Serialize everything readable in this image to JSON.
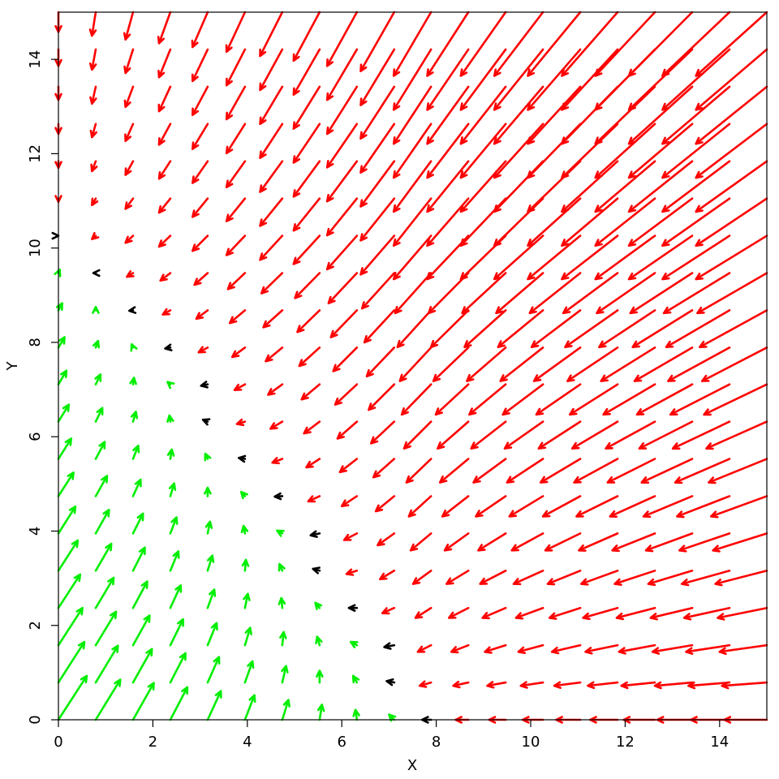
{
  "chart_data": {
    "type": "quiver",
    "xlabel": "X",
    "ylabel": "Y",
    "xlim": [
      0,
      15
    ],
    "ylim": [
      0,
      15
    ],
    "xticks": [
      0,
      2,
      4,
      6,
      8,
      10,
      12,
      14
    ],
    "yticks": [
      0,
      2,
      4,
      6,
      8,
      10,
      12,
      14
    ],
    "x": [
      0,
      0.79,
      1.58,
      2.37,
      3.16,
      3.95,
      4.74,
      5.53,
      6.32,
      7.11,
      7.89,
      8.68,
      9.47,
      10.26,
      11.05,
      11.84,
      12.63,
      13.42,
      14.21,
      15
    ],
    "y": [
      0,
      0.79,
      1.58,
      2.37,
      3.16,
      3.95,
      4.74,
      5.53,
      6.32,
      7.11,
      7.89,
      8.68,
      9.47,
      10.26,
      11.05,
      11.84,
      12.63,
      13.42,
      14.21,
      15
    ],
    "u": [
      [
        0.6,
        0.52,
        0.44,
        0.36,
        0.28,
        0.2,
        0.13,
        0.05,
        -0.03,
        -0.11,
        -0.19,
        -0.27,
        -0.35,
        -0.43,
        -0.51,
        -0.58,
        -0.66,
        -0.74,
        -0.82,
        -0.9
      ],
      [
        0.55,
        0.47,
        0.4,
        0.32,
        0.24,
        0.16,
        0.08,
        0,
        -0.08,
        -0.16,
        -0.24,
        -0.32,
        -0.39,
        -0.47,
        -0.55,
        -0.63,
        -0.71,
        -0.79,
        -0.87,
        -0.95
      ],
      [
        0.51,
        0.43,
        0.35,
        0.27,
        0.19,
        0.11,
        0.03,
        -0.05,
        -0.13,
        -0.21,
        -0.28,
        -0.36,
        -0.44,
        -0.52,
        -0.6,
        -0.68,
        -0.76,
        -0.84,
        -0.92,
        -1
      ],
      [
        0.46,
        0.38,
        0.3,
        0.22,
        0.14,
        0.06,
        -0.02,
        -0.09,
        -0.17,
        -0.25,
        -0.33,
        -0.41,
        -0.49,
        -0.57,
        -0.65,
        -0.73,
        -0.81,
        -0.88,
        -0.96,
        -1.04
      ],
      [
        0.41,
        0.33,
        0.25,
        0.17,
        0.1,
        0.02,
        -0.06,
        -0.14,
        -0.22,
        -0.3,
        -0.38,
        -0.46,
        -0.54,
        -0.62,
        -0.69,
        -0.77,
        -0.85,
        -0.93,
        -1.01,
        -1.09
      ],
      [
        0.36,
        0.28,
        0.21,
        0.13,
        0.05,
        -0.03,
        -0.11,
        -0.19,
        -0.27,
        -0.35,
        -0.43,
        -0.5,
        -0.58,
        -0.66,
        -0.74,
        -0.82,
        -0.9,
        -0.98,
        -1.06,
        -1.14
      ],
      [
        0.32,
        0.24,
        0.16,
        0.08,
        0,
        -0.08,
        -0.16,
        -0.24,
        -0.32,
        -0.39,
        -0.47,
        -0.55,
        -0.63,
        -0.71,
        -0.79,
        -0.87,
        -0.95,
        -1.03,
        -1.11,
        -1.18
      ],
      [
        0.27,
        0.19,
        0.11,
        0.03,
        -0.05,
        -0.13,
        -0.21,
        -0.28,
        -0.36,
        -0.44,
        -0.52,
        -0.6,
        -0.68,
        -0.76,
        -0.84,
        -0.92,
        -1,
        -1.07,
        -1.15,
        -1.23
      ],
      [
        0.22,
        0.14,
        0.06,
        -0.02,
        -0.1,
        -0.17,
        -0.25,
        -0.33,
        -0.41,
        -0.49,
        -0.57,
        -0.65,
        -0.73,
        -0.81,
        -0.88,
        -0.96,
        -1.04,
        -1.12,
        -1.2,
        -1.28
      ],
      [
        0.17,
        0.1,
        0.02,
        -0.06,
        -0.14,
        -0.22,
        -0.3,
        -0.38,
        -0.46,
        -0.54,
        -0.62,
        -0.69,
        -0.77,
        -0.85,
        -0.93,
        -1.01,
        -1.09,
        -1.17,
        -1.25,
        -1.33
      ],
      [
        0.13,
        0.05,
        -0.03,
        -0.11,
        -0.19,
        -0.27,
        -0.35,
        -0.43,
        -0.5,
        -0.58,
        -0.66,
        -0.74,
        -0.82,
        -0.9,
        -0.98,
        -1.06,
        -1.14,
        -1.22,
        -1.3,
        -1.37
      ],
      [
        0.08,
        0,
        -0.08,
        -0.16,
        -0.24,
        -0.32,
        -0.4,
        -0.47,
        -0.55,
        -0.63,
        -0.71,
        -0.79,
        -0.87,
        -0.95,
        -1.03,
        -1.11,
        -1.18,
        -1.26,
        -1.34,
        -1.42
      ],
      [
        0.03,
        -0.05,
        -0.13,
        -0.21,
        -0.28,
        -0.36,
        -0.44,
        -0.52,
        -0.6,
        -0.68,
        -0.76,
        -0.84,
        -0.92,
        -0.99,
        -1.07,
        -1.15,
        -1.23,
        -1.31,
        -1.39,
        -1.47
      ],
      [
        0,
        -0.08,
        -0.16,
        -0.24,
        -0.32,
        -0.39,
        -0.47,
        -0.55,
        -0.63,
        -0.71,
        -0.79,
        -0.87,
        -0.95,
        -1.03,
        -1.11,
        -1.18,
        -1.26,
        -1.34,
        -1.42,
        -1.5
      ],
      [
        0,
        -0.08,
        -0.16,
        -0.24,
        -0.32,
        -0.39,
        -0.47,
        -0.55,
        -0.63,
        -0.71,
        -0.79,
        -0.87,
        -0.95,
        -1.03,
        -1.11,
        -1.18,
        -1.26,
        -1.34,
        -1.42,
        -1.5
      ],
      [
        0,
        -0.08,
        -0.16,
        -0.24,
        -0.32,
        -0.39,
        -0.47,
        -0.55,
        -0.63,
        -0.71,
        -0.79,
        -0.87,
        -0.95,
        -1.03,
        -1.11,
        -1.18,
        -1.26,
        -1.34,
        -1.42,
        -1.5
      ],
      [
        0,
        -0.08,
        -0.16,
        -0.24,
        -0.32,
        -0.39,
        -0.47,
        -0.55,
        -0.63,
        -0.71,
        -0.79,
        -0.87,
        -0.95,
        -1.03,
        -1.11,
        -1.18,
        -1.26,
        -1.34,
        -1.42,
        -1.5
      ],
      [
        0,
        -0.08,
        -0.16,
        -0.24,
        -0.32,
        -0.39,
        -0.47,
        -0.55,
        -0.63,
        -0.71,
        -0.79,
        -0.87,
        -0.95,
        -1.03,
        -1.11,
        -1.18,
        -1.26,
        -1.34,
        -1.42,
        -1.5
      ],
      [
        0,
        -0.08,
        -0.16,
        -0.24,
        -0.32,
        -0.39,
        -0.47,
        -0.55,
        -0.63,
        -0.71,
        -0.79,
        -0.87,
        -0.95,
        -1.03,
        -1.11,
        -1.18,
        -1.26,
        -1.34,
        -1.42,
        -1.5
      ],
      [
        0,
        -0.08,
        -0.16,
        -0.24,
        -0.32,
        -0.39,
        -0.47,
        -0.55,
        -0.63,
        -0.71,
        -0.79,
        -0.87,
        -0.95,
        -1.03,
        -1.11,
        -1.18,
        -1.26,
        -1.34,
        -1.42,
        -1.5
      ]
    ],
    "v": [
      [
        0.93,
        0.85,
        0.78,
        0.69,
        0.61,
        0.52,
        0.42,
        0.32,
        0.21,
        0.11,
        0,
        0,
        0,
        0,
        0,
        0,
        0,
        0,
        0,
        0
      ],
      [
        0.86,
        0.78,
        0.71,
        0.62,
        0.54,
        0.45,
        0.35,
        0.25,
        0.14,
        0.03,
        -0.07,
        -0.07,
        -0.07,
        -0.07,
        -0.07,
        -0.07,
        -0.07,
        -0.07,
        -0.07,
        -0.07
      ],
      [
        0.79,
        0.71,
        0.63,
        0.55,
        0.47,
        0.37,
        0.28,
        0.18,
        0.07,
        -0.04,
        -0.14,
        -0.14,
        -0.14,
        -0.14,
        -0.14,
        -0.14,
        -0.14,
        -0.14,
        -0.14,
        -0.14
      ],
      [
        0.71,
        0.64,
        0.56,
        0.48,
        0.39,
        0.3,
        0.21,
        0.11,
        0,
        -0.11,
        -0.21,
        -0.21,
        -0.21,
        -0.21,
        -0.21,
        -0.21,
        -0.21,
        -0.21,
        -0.21,
        -0.21
      ],
      [
        0.64,
        0.57,
        0.49,
        0.41,
        0.32,
        0.23,
        0.14,
        0.04,
        -0.07,
        -0.18,
        -0.28,
        -0.28,
        -0.28,
        -0.28,
        -0.28,
        -0.28,
        -0.28,
        -0.28,
        -0.28,
        -0.28
      ],
      [
        0.57,
        0.5,
        0.42,
        0.34,
        0.25,
        0.16,
        0.06,
        -0.04,
        -0.14,
        -0.25,
        -0.36,
        -0.36,
        -0.36,
        -0.36,
        -0.36,
        -0.36,
        -0.36,
        -0.36,
        -0.36,
        -0.36
      ],
      [
        0.5,
        0.43,
        0.35,
        0.27,
        0.18,
        0.09,
        -0.01,
        -0.11,
        -0.21,
        -0.32,
        -0.43,
        -0.43,
        -0.43,
        -0.43,
        -0.43,
        -0.43,
        -0.43,
        -0.43,
        -0.43,
        -0.43
      ],
      [
        0.43,
        0.36,
        0.28,
        0.2,
        0.11,
        0.02,
        -0.08,
        -0.18,
        -0.28,
        -0.39,
        -0.5,
        -0.5,
        -0.5,
        -0.5,
        -0.5,
        -0.5,
        -0.5,
        -0.5,
        -0.5,
        -0.5
      ],
      [
        0.36,
        0.29,
        0.21,
        0.13,
        0.04,
        -0.05,
        -0.15,
        -0.25,
        -0.36,
        -0.46,
        -0.57,
        -0.57,
        -0.57,
        -0.57,
        -0.57,
        -0.57,
        -0.57,
        -0.57,
        -0.57,
        -0.57
      ],
      [
        0.29,
        0.21,
        0.14,
        0.05,
        -0.03,
        -0.12,
        -0.22,
        -0.32,
        -0.43,
        -0.54,
        -0.64,
        -0.64,
        -0.64,
        -0.64,
        -0.64,
        -0.64,
        -0.64,
        -0.64,
        -0.64,
        -0.64
      ],
      [
        0.22,
        0.14,
        0.07,
        -0.02,
        -0.1,
        -0.2,
        -0.29,
        -0.39,
        -0.5,
        -0.61,
        -0.71,
        -0.71,
        -0.71,
        -0.71,
        -0.71,
        -0.71,
        -0.71,
        -0.71,
        -0.71,
        -0.71
      ],
      [
        0.15,
        0.07,
        -0.01,
        -0.09,
        -0.18,
        -0.27,
        -0.36,
        -0.46,
        -0.57,
        -0.68,
        -0.78,
        -0.78,
        -0.78,
        -0.78,
        -0.78,
        -0.78,
        -0.78,
        -0.78,
        -0.78,
        -0.78
      ],
      [
        0.07,
        0,
        -0.08,
        -0.16,
        -0.25,
        -0.34,
        -0.43,
        -0.53,
        -0.64,
        -0.75,
        -0.85,
        -0.85,
        -0.85,
        -0.85,
        -0.85,
        -0.85,
        -0.85,
        -0.85,
        -0.85,
        -0.85
      ],
      [
        0,
        -0.07,
        -0.15,
        -0.23,
        -0.32,
        -0.41,
        -0.51,
        -0.6,
        -0.71,
        -0.82,
        -0.92,
        -0.92,
        -0.92,
        -0.92,
        -0.92,
        -0.92,
        -0.92,
        -0.92,
        -0.92,
        -0.92
      ],
      [
        -0.07,
        -0.14,
        -0.22,
        -0.3,
        -0.39,
        -0.48,
        -0.58,
        -0.68,
        -0.78,
        -0.89,
        -1,
        -1,
        -1,
        -1,
        -1,
        -1,
        -1,
        -1,
        -1,
        -1
      ],
      [
        -0.14,
        -0.21,
        -0.29,
        -0.37,
        -0.46,
        -0.55,
        -0.65,
        -0.75,
        -0.85,
        -0.96,
        -1.07,
        -1.07,
        -1.07,
        -1.07,
        -1.07,
        -1.07,
        -1.07,
        -1.07,
        -1.07,
        -1.07
      ],
      [
        -0.21,
        -0.28,
        -0.36,
        -0.44,
        -0.53,
        -0.62,
        -0.72,
        -0.82,
        -0.92,
        -1.03,
        -1.14,
        -1.14,
        -1.14,
        -1.14,
        -1.14,
        -1.14,
        -1.14,
        -1.14,
        -1.14,
        -1.14
      ],
      [
        -0.28,
        -0.36,
        -0.43,
        -0.52,
        -0.6,
        -0.69,
        -0.79,
        -0.89,
        -1,
        -1.1,
        -1.21,
        -1.21,
        -1.21,
        -1.21,
        -1.21,
        -1.21,
        -1.21,
        -1.21,
        -1.21,
        -1.21
      ],
      [
        -0.35,
        -0.43,
        -0.5,
        -0.59,
        -0.67,
        -0.76,
        -0.86,
        -0.96,
        -1.07,
        -1.18,
        -1.28,
        -1.28,
        -1.28,
        -1.28,
        -1.28,
        -1.28,
        -1.28,
        -1.28,
        -1.28,
        -1.28
      ],
      [
        -0.42,
        -0.5,
        -0.58,
        -0.66,
        -0.74,
        -0.84,
        -0.93,
        -1.03,
        -1.14,
        -1.25,
        -1.35,
        -1.35,
        -1.35,
        -1.35,
        -1.35,
        -1.35,
        -1.35,
        -1.35,
        -1.35,
        -1.35
      ]
    ],
    "palette": [
      "#00ee00",
      "#000000",
      "#ff0000"
    ],
    "color_index": [
      [
        0,
        0,
        0,
        0,
        0,
        0,
        0,
        0,
        0,
        0,
        1,
        2,
        2,
        2,
        2,
        2,
        2,
        2,
        2,
        2
      ],
      [
        0,
        0,
        0,
        0,
        0,
        0,
        0,
        0,
        0,
        1,
        2,
        2,
        2,
        2,
        2,
        2,
        2,
        2,
        2,
        2
      ],
      [
        0,
        0,
        0,
        0,
        0,
        0,
        0,
        0,
        0,
        1,
        2,
        2,
        2,
        2,
        2,
        2,
        2,
        2,
        2,
        2
      ],
      [
        0,
        0,
        0,
        0,
        0,
        0,
        0,
        0,
        1,
        2,
        2,
        2,
        2,
        2,
        2,
        2,
        2,
        2,
        2,
        2
      ],
      [
        0,
        0,
        0,
        0,
        0,
        0,
        0,
        1,
        2,
        2,
        2,
        2,
        2,
        2,
        2,
        2,
        2,
        2,
        2,
        2
      ],
      [
        0,
        0,
        0,
        0,
        0,
        0,
        0,
        1,
        2,
        2,
        2,
        2,
        2,
        2,
        2,
        2,
        2,
        2,
        2,
        2
      ],
      [
        0,
        0,
        0,
        0,
        0,
        0,
        1,
        2,
        2,
        2,
        2,
        2,
        2,
        2,
        2,
        2,
        2,
        2,
        2,
        2
      ],
      [
        0,
        0,
        0,
        0,
        0,
        1,
        2,
        2,
        2,
        2,
        2,
        2,
        2,
        2,
        2,
        2,
        2,
        2,
        2,
        2
      ],
      [
        0,
        0,
        0,
        0,
        1,
        2,
        2,
        2,
        2,
        2,
        2,
        2,
        2,
        2,
        2,
        2,
        2,
        2,
        2,
        2
      ],
      [
        0,
        0,
        0,
        0,
        1,
        2,
        2,
        2,
        2,
        2,
        2,
        2,
        2,
        2,
        2,
        2,
        2,
        2,
        2,
        2
      ],
      [
        0,
        0,
        0,
        1,
        2,
        2,
        2,
        2,
        2,
        2,
        2,
        2,
        2,
        2,
        2,
        2,
        2,
        2,
        2,
        2
      ],
      [
        0,
        0,
        1,
        2,
        2,
        2,
        2,
        2,
        2,
        2,
        2,
        2,
        2,
        2,
        2,
        2,
        2,
        2,
        2,
        2
      ],
      [
        0,
        1,
        2,
        2,
        2,
        2,
        2,
        2,
        2,
        2,
        2,
        2,
        2,
        2,
        2,
        2,
        2,
        2,
        2,
        2
      ],
      [
        1,
        2,
        2,
        2,
        2,
        2,
        2,
        2,
        2,
        2,
        2,
        2,
        2,
        2,
        2,
        2,
        2,
        2,
        2,
        2
      ],
      [
        2,
        2,
        2,
        2,
        2,
        2,
        2,
        2,
        2,
        2,
        2,
        2,
        2,
        2,
        2,
        2,
        2,
        2,
        2,
        2
      ],
      [
        2,
        2,
        2,
        2,
        2,
        2,
        2,
        2,
        2,
        2,
        2,
        2,
        2,
        2,
        2,
        2,
        2,
        2,
        2,
        2
      ],
      [
        2,
        2,
        2,
        2,
        2,
        2,
        2,
        2,
        2,
        2,
        2,
        2,
        2,
        2,
        2,
        2,
        2,
        2,
        2,
        2
      ],
      [
        2,
        2,
        2,
        2,
        2,
        2,
        2,
        2,
        2,
        2,
        2,
        2,
        2,
        2,
        2,
        2,
        2,
        2,
        2,
        2
      ],
      [
        2,
        2,
        2,
        2,
        2,
        2,
        2,
        2,
        2,
        2,
        2,
        2,
        2,
        2,
        2,
        2,
        2,
        2,
        2,
        2
      ],
      [
        2,
        2,
        2,
        2,
        2,
        2,
        2,
        2,
        2,
        2,
        2,
        2,
        2,
        2,
        2,
        2,
        2,
        2,
        2,
        2
      ]
    ]
  }
}
